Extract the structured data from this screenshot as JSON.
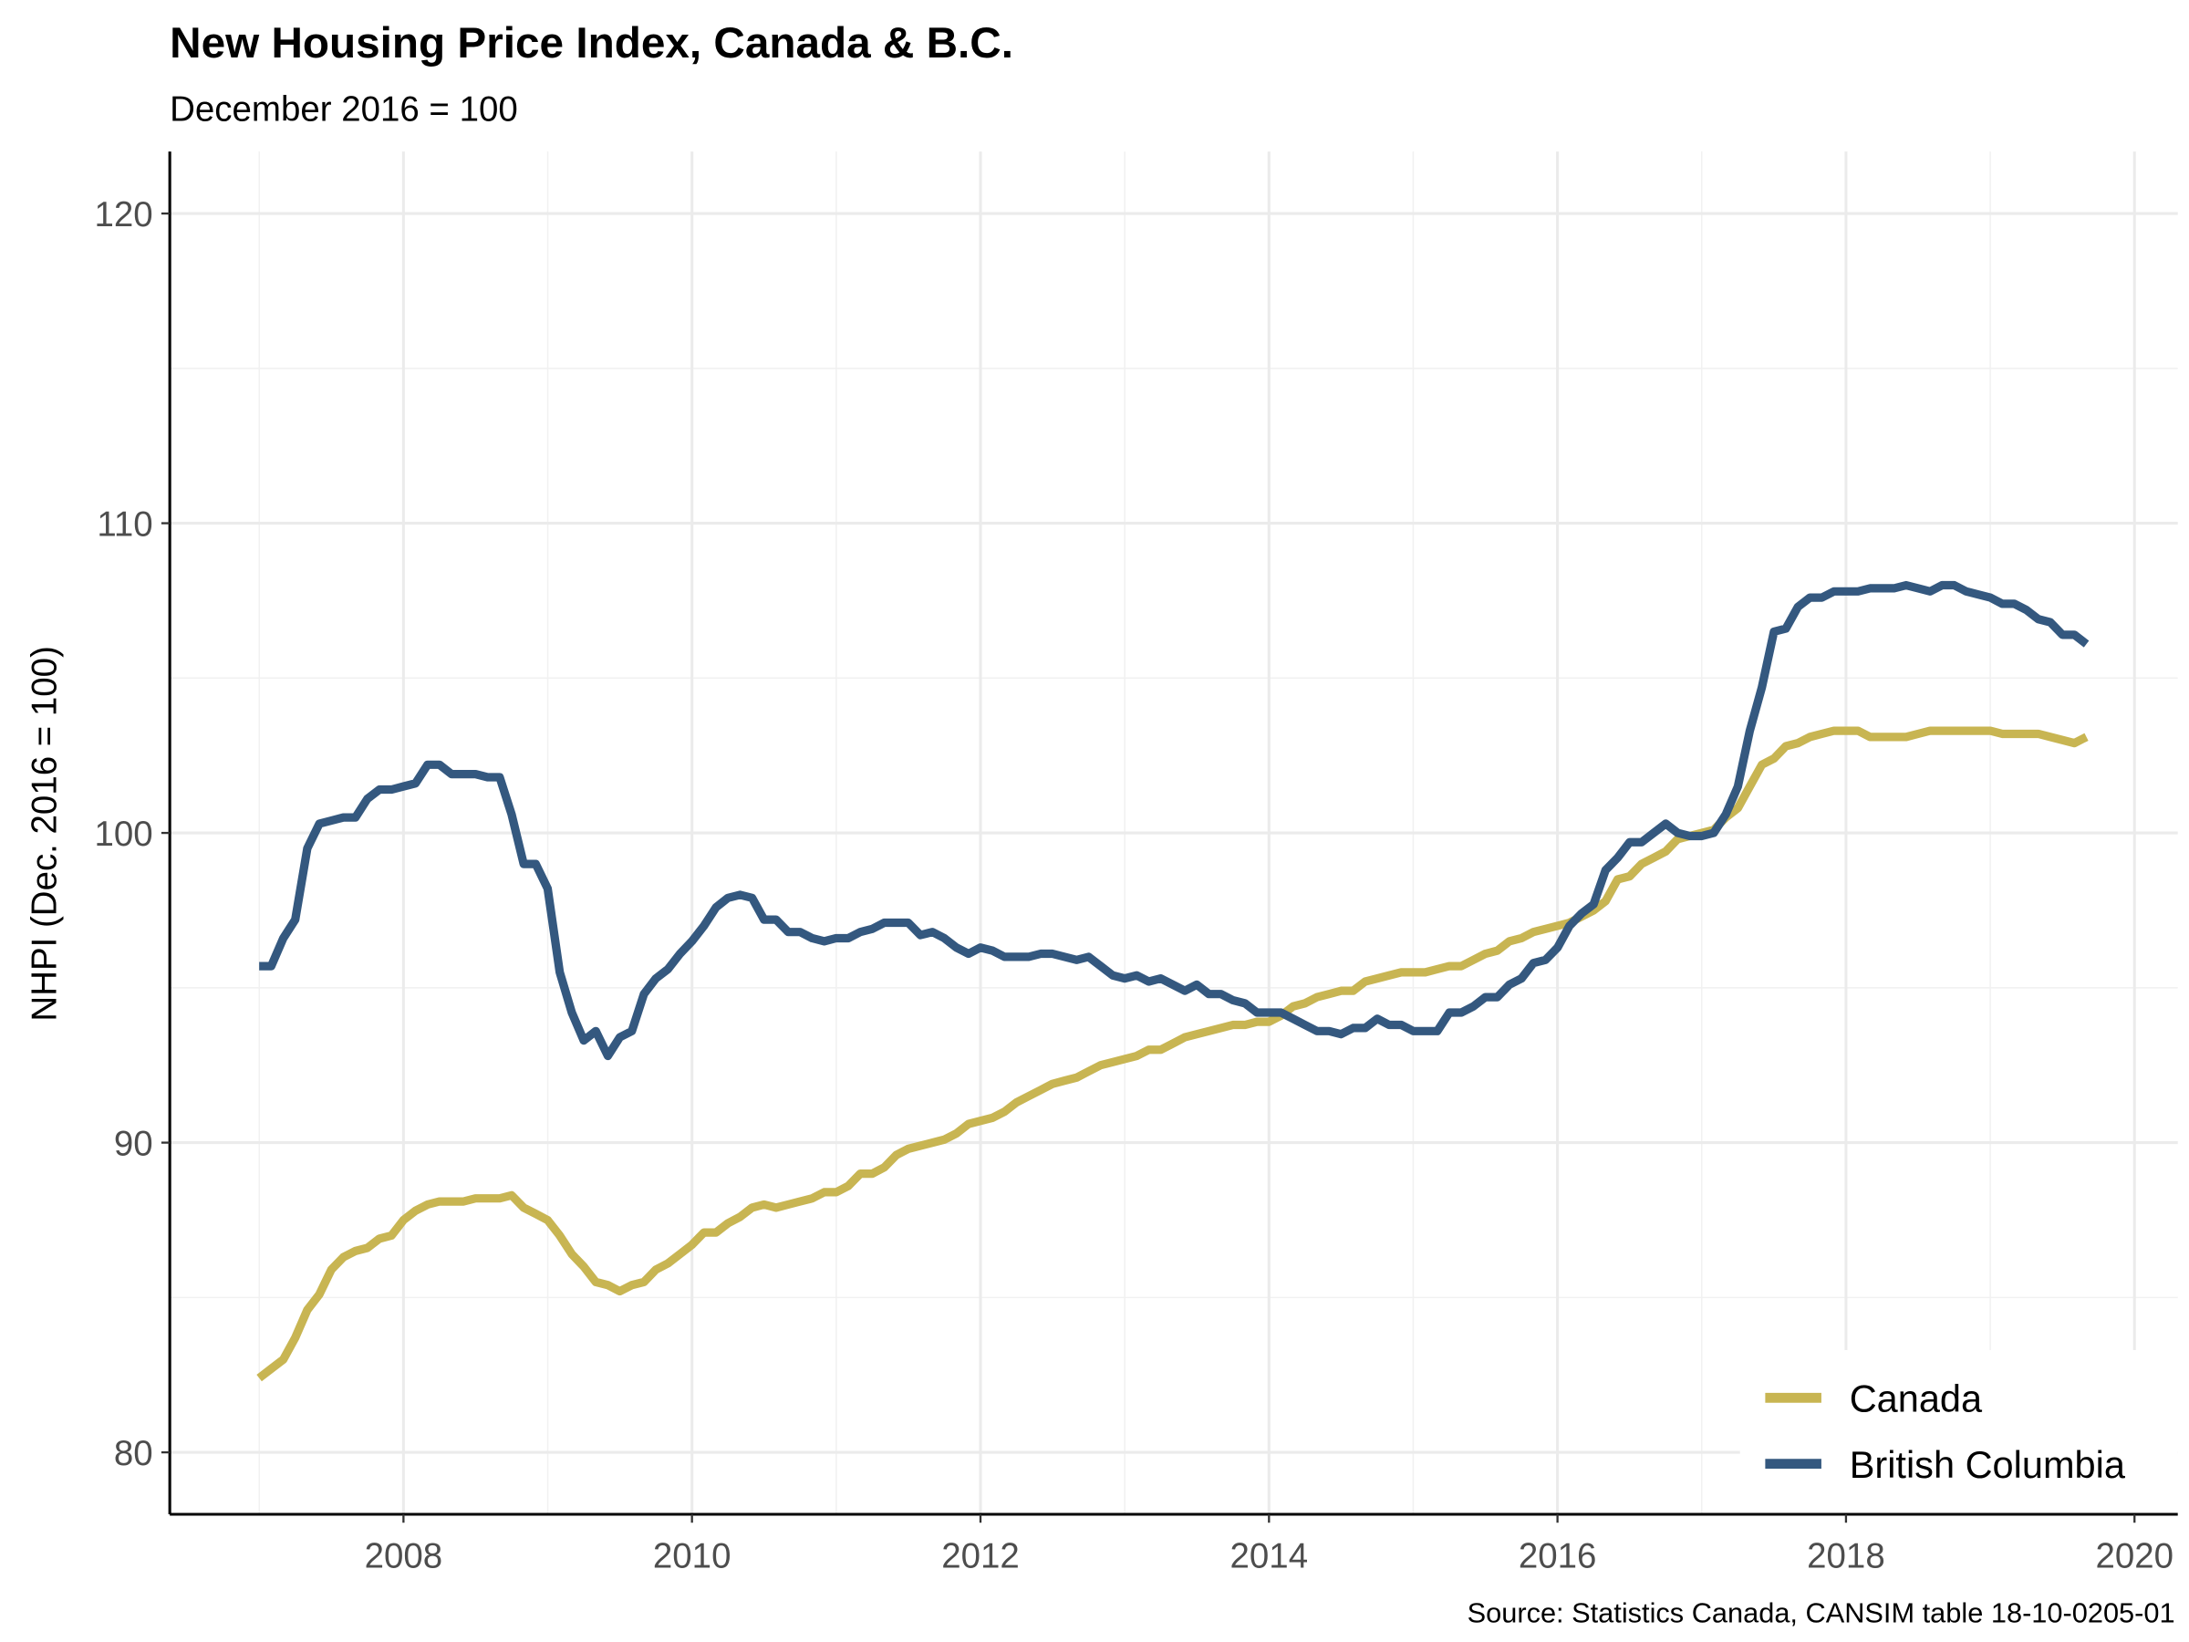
{
  "chart_data": {
    "type": "line",
    "title": "New Housing Price Index, Canada & B.C.",
    "subtitle": "December 2016 = 100",
    "xlabel": "",
    "ylabel": "NHPI (Dec. 2016 = 100)",
    "caption": "Source: Statistics Canada, CANSIM table 18-10-0205-01",
    "x_start": "2007-01",
    "x_frequency": "monthly",
    "xlim": [
      2006.38,
      2020.3
    ],
    "ylim": [
      78,
      122
    ],
    "x_ticks": [
      2008,
      2010,
      2012,
      2014,
      2016,
      2018,
      2020
    ],
    "x_tick_labels": [
      "2008",
      "2010",
      "2012",
      "2014",
      "2016",
      "2018",
      "2020"
    ],
    "y_ticks": [
      80,
      90,
      100,
      110,
      120
    ],
    "y_tick_labels": [
      "80",
      "90",
      "100",
      "110",
      "120"
    ],
    "grid": true,
    "legend_position": "bottom-right",
    "series": [
      {
        "name": "Canada",
        "color": "#C8B552",
        "values": [
          82.4,
          82.7,
          83.0,
          83.7,
          84.6,
          85.1,
          85.9,
          86.3,
          86.5,
          86.6,
          86.9,
          87.0,
          87.5,
          87.8,
          88.0,
          88.1,
          88.1,
          88.1,
          88.2,
          88.2,
          88.2,
          88.3,
          87.9,
          87.7,
          87.5,
          87.0,
          86.4,
          86.0,
          85.5,
          85.4,
          85.2,
          85.4,
          85.5,
          85.9,
          86.1,
          86.4,
          86.7,
          87.1,
          87.1,
          87.4,
          87.6,
          87.9,
          88.0,
          87.9,
          88.0,
          88.1,
          88.2,
          88.4,
          88.4,
          88.6,
          89.0,
          89.0,
          89.2,
          89.6,
          89.8,
          89.9,
          90.0,
          90.1,
          90.3,
          90.6,
          90.7,
          90.8,
          91.0,
          91.3,
          91.5,
          91.7,
          91.9,
          92.0,
          92.1,
          92.3,
          92.5,
          92.6,
          92.7,
          92.8,
          93.0,
          93.0,
          93.2,
          93.4,
          93.5,
          93.6,
          93.7,
          93.8,
          93.8,
          93.9,
          93.9,
          94.1,
          94.4,
          94.5,
          94.7,
          94.8,
          94.9,
          94.9,
          95.2,
          95.3,
          95.4,
          95.5,
          95.5,
          95.5,
          95.6,
          95.7,
          95.7,
          95.9,
          96.1,
          96.2,
          96.5,
          96.6,
          96.8,
          96.9,
          97.0,
          97.1,
          97.3,
          97.5,
          97.8,
          98.5,
          98.6,
          99.0,
          99.2,
          99.4,
          99.8,
          99.9,
          100.0,
          100.1,
          100.5,
          100.8,
          101.5,
          102.2,
          102.4,
          102.8,
          102.9,
          103.1,
          103.2,
          103.3,
          103.3,
          103.3,
          103.1,
          103.1,
          103.1,
          103.1,
          103.2,
          103.3,
          103.3,
          103.3,
          103.3,
          103.3,
          103.3,
          103.2,
          103.2,
          103.2,
          103.2,
          103.1,
          103.0,
          102.9,
          103.1
        ]
      },
      {
        "name": "British Columbia",
        "color": "#34587F",
        "values": [
          95.7,
          95.7,
          96.6,
          97.2,
          99.5,
          100.3,
          100.4,
          100.5,
          100.5,
          101.1,
          101.4,
          101.4,
          101.5,
          101.6,
          102.2,
          102.2,
          101.9,
          101.9,
          101.9,
          101.8,
          101.8,
          100.6,
          99.0,
          99.0,
          98.2,
          95.5,
          94.2,
          93.3,
          93.6,
          92.8,
          93.4,
          93.6,
          94.8,
          95.3,
          95.6,
          96.1,
          96.5,
          97.0,
          97.6,
          97.9,
          98.0,
          97.9,
          97.2,
          97.2,
          96.8,
          96.8,
          96.6,
          96.5,
          96.6,
          96.6,
          96.8,
          96.9,
          97.1,
          97.1,
          97.1,
          96.7,
          96.8,
          96.6,
          96.3,
          96.1,
          96.3,
          96.2,
          96.0,
          96.0,
          96.0,
          96.1,
          96.1,
          96.0,
          95.9,
          96.0,
          95.7,
          95.4,
          95.3,
          95.4,
          95.2,
          95.3,
          95.1,
          94.9,
          95.1,
          94.8,
          94.8,
          94.6,
          94.5,
          94.2,
          94.2,
          94.2,
          94.0,
          93.8,
          93.6,
          93.6,
          93.5,
          93.7,
          93.7,
          94.0,
          93.8,
          93.8,
          93.6,
          93.6,
          93.6,
          94.2,
          94.2,
          94.4,
          94.7,
          94.7,
          95.1,
          95.3,
          95.8,
          95.9,
          96.3,
          97.0,
          97.4,
          97.7,
          98.8,
          99.2,
          99.7,
          99.7,
          100.0,
          100.3,
          100.0,
          99.9,
          99.9,
          100.0,
          100.6,
          101.5,
          103.3,
          104.7,
          106.5,
          106.6,
          107.3,
          107.6,
          107.6,
          107.8,
          107.8,
          107.8,
          107.9,
          107.9,
          107.9,
          108.0,
          107.9,
          107.8,
          108.0,
          108.0,
          107.8,
          107.7,
          107.6,
          107.4,
          107.4,
          107.2,
          106.9,
          106.8,
          106.4,
          106.4,
          106.1
        ]
      }
    ]
  }
}
